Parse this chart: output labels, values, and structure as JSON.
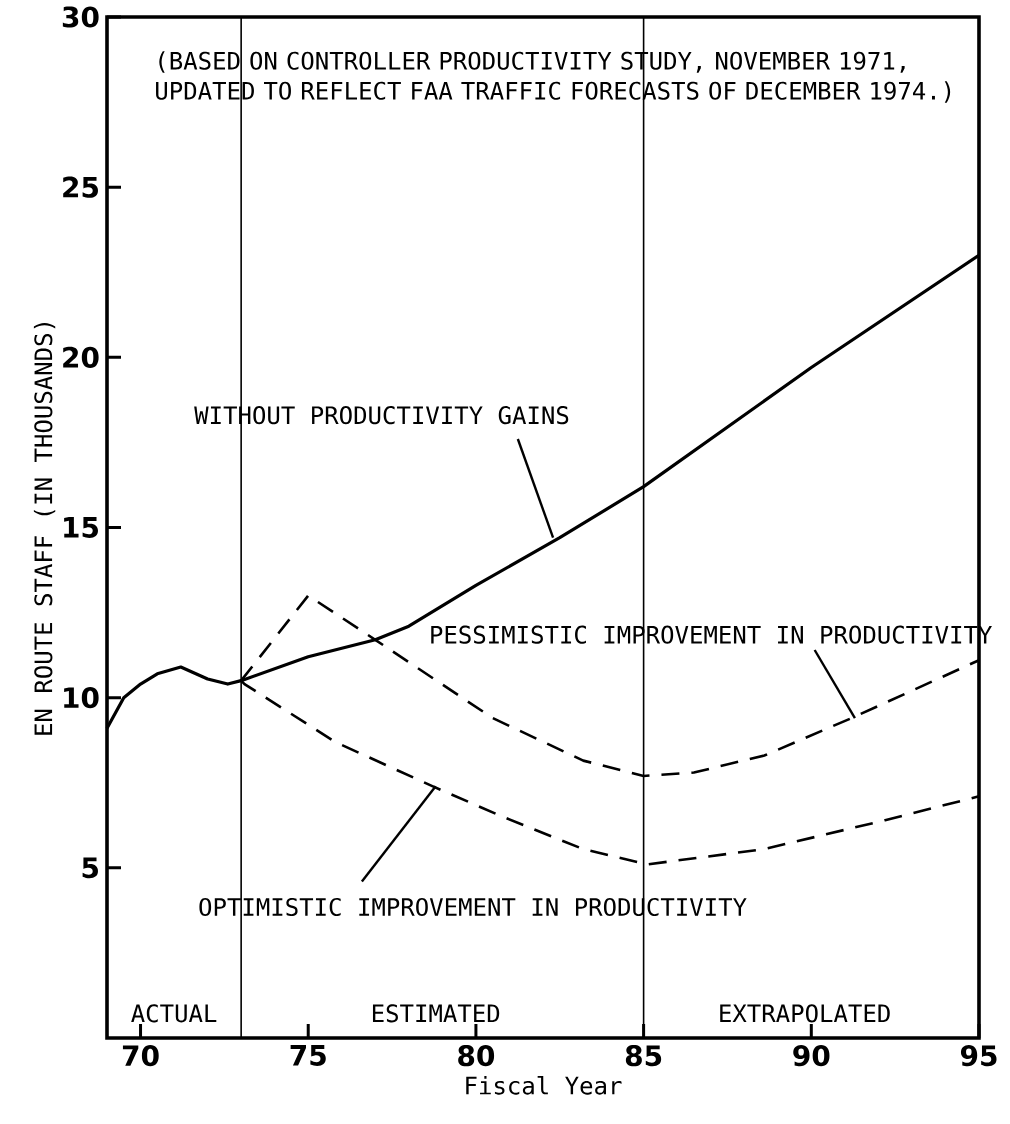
{
  "chart_data": {
    "type": "line",
    "xlabel": "Fiscal Year",
    "ylabel": "EN ROUTE STAFF (IN THOUSANDS)",
    "xlim": [
      69,
      95
    ],
    "ylim": [
      0,
      30
    ],
    "xticks": [
      70,
      75,
      80,
      85,
      90,
      95
    ],
    "yticks": [
      5,
      10,
      15,
      20,
      25,
      30
    ],
    "ref_lines": [
      {
        "axis": "x",
        "value": 73
      },
      {
        "axis": "x",
        "value": 85
      }
    ],
    "annotations": [
      "(BASED ON CONTROLLER PRODUCTIVITY STUDY, NOVEMBER 1971, UPDATED TO REFLECT FAA TRAFFIC FORECASTS OF DECEMBER 1974.)",
      "ACTUAL",
      "ESTIMATED",
      "EXTRAPOLATED",
      {
        "text": "WITHOUT PRODUCTIVITY GAINS",
        "x": 82.3,
        "y": 14.7
      },
      {
        "text": "PESSIMISTIC IMPROVEMENT IN PRODUCTIVITY",
        "x": 91.3,
        "y": 9.4
      },
      {
        "text": "OPTIMISTIC IMPROVEMENT IN PRODUCTIVITY",
        "x": 78.8,
        "y": 7.4
      }
    ],
    "series": [
      {
        "color": "#000000",
        "line_style": "solid",
        "x": [
          69,
          69.5,
          70,
          70.5,
          71.2,
          72,
          72.6,
          73,
          75,
          77,
          78,
          80,
          82.5,
          85,
          90,
          95
        ],
        "values": [
          9.1,
          10.0,
          10.4,
          10.7,
          10.9,
          10.55,
          10.4,
          10.5,
          11.2,
          11.7,
          12.1,
          13.3,
          14.7,
          16.2,
          19.7,
          23.0
        ]
      },
      {
        "color": "#000000",
        "line_style": "dashed",
        "x": [
          73,
          75,
          77,
          80.5,
          83.2,
          85,
          86.5,
          88.6,
          91.2,
          95
        ],
        "values": [
          10.5,
          13.0,
          11.7,
          9.4,
          8.15,
          7.7,
          7.8,
          8.3,
          9.4,
          11.1
        ]
      },
      {
        "color": "#000000",
        "line_style": "dashed",
        "x": [
          73,
          73.1,
          75.8,
          78.7,
          80.8,
          83.2,
          85.1,
          88.6,
          92.2,
          95
        ],
        "values": [
          10.5,
          10.4,
          8.7,
          7.4,
          6.5,
          5.55,
          5.1,
          5.55,
          6.4,
          7.1
        ]
      }
    ]
  }
}
